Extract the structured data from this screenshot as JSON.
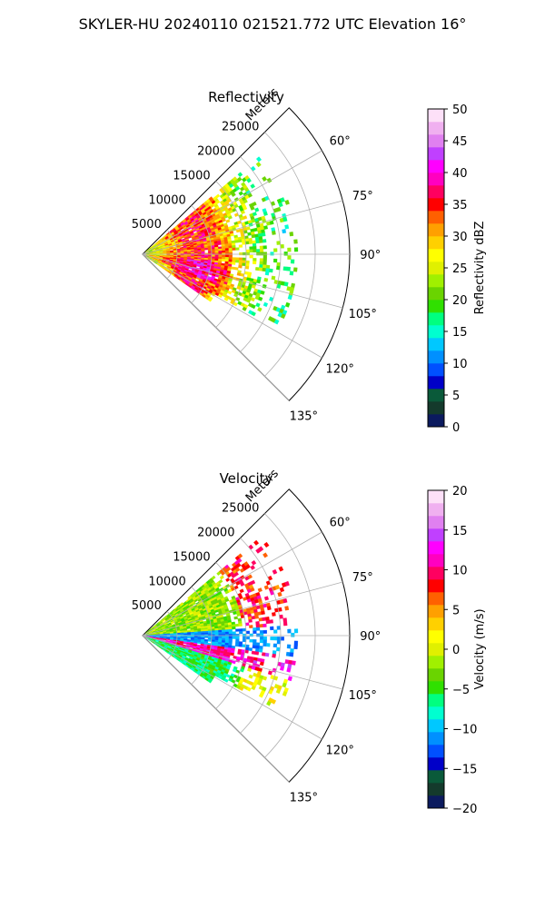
{
  "figure_title": "SKYLER-HU  20240110  021521.772 UTC Elevation 16°",
  "chart_data": [
    {
      "type": "heatmap",
      "subtype": "polar-sector",
      "title": "Reflectivity",
      "radial_label": "Meters",
      "radial_ticks": [
        "5000",
        "10000",
        "15000",
        "20000",
        "25000"
      ],
      "radial_tick_values": [
        5000,
        10000,
        15000,
        20000,
        25000
      ],
      "rmax": 30000,
      "theta_ticks": [
        "60°",
        "75°",
        "90°",
        "105°",
        "120°",
        "135°"
      ],
      "theta_tick_values": [
        60,
        75,
        90,
        105,
        120,
        135
      ],
      "theta_range_deg": [
        45,
        135
      ],
      "grid": true,
      "colorbar": {
        "label": "Reflectivity dBZ",
        "min": 0,
        "max": 50,
        "ticks": [
          "0",
          "5",
          "10",
          "15",
          "20",
          "25",
          "30",
          "35",
          "40",
          "45",
          "50"
        ],
        "tick_values": [
          0,
          5,
          10,
          15,
          20,
          25,
          30,
          35,
          40,
          45,
          50
        ],
        "colors": [
          "#0b1a5e",
          "#143a2c",
          "#0a5a3a",
          "#0000c8",
          "#0050ff",
          "#0090ff",
          "#00c8ff",
          "#00ffd0",
          "#00ff80",
          "#30e000",
          "#6ad400",
          "#a0f000",
          "#e0f000",
          "#ffff00",
          "#ffd000",
          "#ffa000",
          "#ff6000",
          "#ff0000",
          "#ff0060",
          "#ff00c0",
          "#ff00ff",
          "#c040ff",
          "#e080f0",
          "#f0b0f0",
          "#fde0f8"
        ]
      },
      "data_extent": {
        "r_max_approx": 22000,
        "theta_min": 50,
        "theta_max": 125
      },
      "dominant_values": "20-40 dBZ core within ~15000 m, scattered 15-25 dBZ echoes to ~22000 m"
    },
    {
      "type": "heatmap",
      "subtype": "polar-sector",
      "title": "Velocity",
      "radial_label": "Meters",
      "radial_ticks": [
        "5000",
        "10000",
        "15000",
        "20000",
        "25000"
      ],
      "radial_tick_values": [
        5000,
        10000,
        15000,
        20000,
        25000
      ],
      "rmax": 30000,
      "theta_ticks": [
        "60°",
        "75°",
        "90°",
        "105°",
        "120°",
        "135°"
      ],
      "theta_tick_values": [
        60,
        75,
        90,
        105,
        120,
        135
      ],
      "theta_range_deg": [
        45,
        135
      ],
      "grid": true,
      "colorbar": {
        "label": "Velocity (m/s)",
        "min": -20,
        "max": 20,
        "ticks": [
          "−20",
          "−15",
          "−10",
          "−5",
          "0",
          "5",
          "10",
          "15",
          "20"
        ],
        "tick_values": [
          -20,
          -15,
          -10,
          -5,
          0,
          5,
          10,
          15,
          20
        ],
        "colors": [
          "#0b1a5e",
          "#143a2c",
          "#0a5a3a",
          "#0000c8",
          "#0050ff",
          "#0090ff",
          "#00c8ff",
          "#00ffd0",
          "#00ff80",
          "#30e000",
          "#6ad400",
          "#a0f000",
          "#e0f000",
          "#ffff00",
          "#ffd000",
          "#ffa000",
          "#ff6000",
          "#ff0000",
          "#ff0060",
          "#ff00c0",
          "#ff00ff",
          "#c040ff",
          "#e080f0",
          "#f0b0f0",
          "#fde0f8"
        ]
      },
      "data_extent": {
        "r_max_approx": 22000,
        "theta_min": 50,
        "theta_max": 125
      },
      "dominant_values": "−5 to 0 m/s near azimuth 60-85°, −10 to −15 m/s band near 95-100°, +10 to +15 m/s band near 100-105° and at far range 55-75°"
    }
  ]
}
